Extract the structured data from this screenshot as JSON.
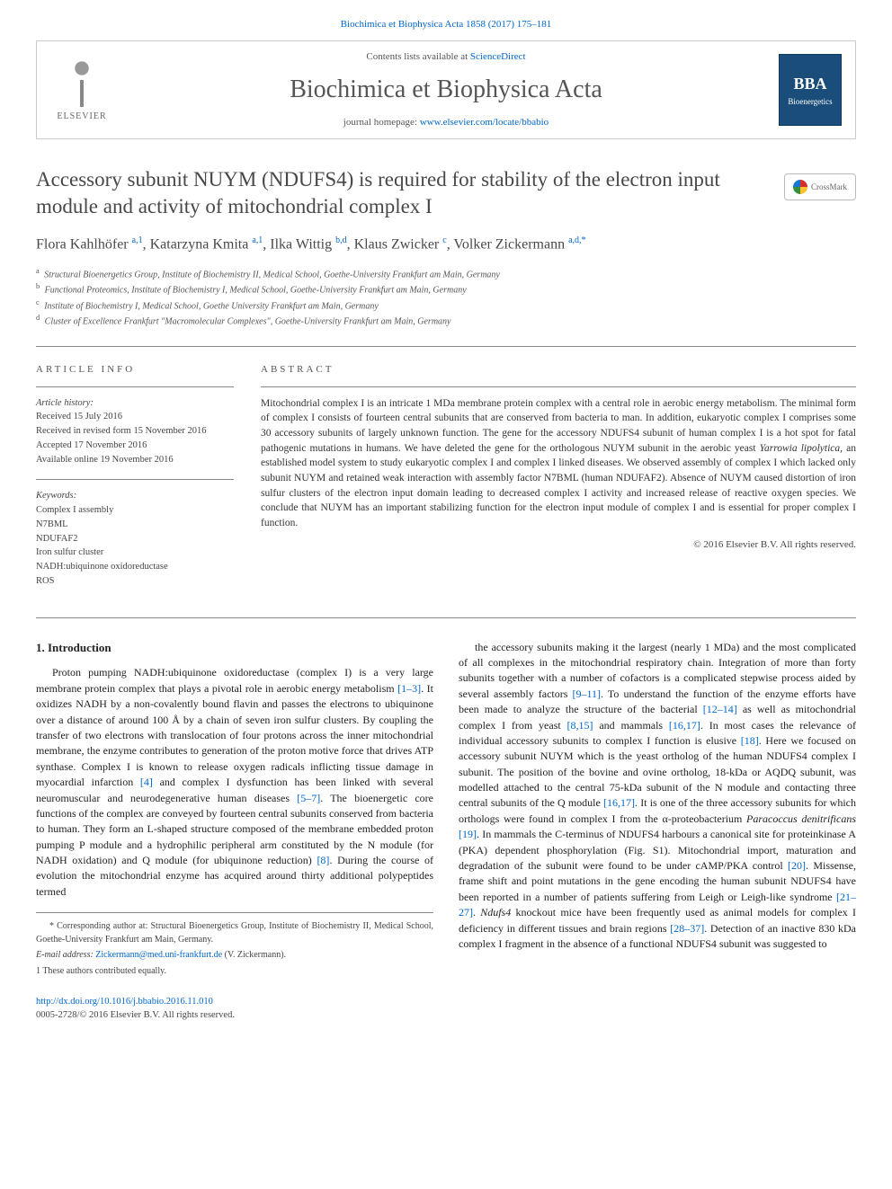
{
  "top_citation": "Biochimica et Biophysica Acta 1858 (2017) 175–181",
  "header": {
    "contents_prefix": "Contents lists available at ",
    "contents_link": "ScienceDirect",
    "journal": "Biochimica et Biophysica Acta",
    "homepage_prefix": "journal homepage: ",
    "homepage_link": "www.elsevier.com/locate/bbabio",
    "elsevier_label": "ELSEVIER",
    "bba_top": "BBA",
    "bba_bottom": "Bioenergetics"
  },
  "crossmark": "CrossMark",
  "title": "Accessory subunit NUYM (NDUFS4) is required for stability of the electron input module and activity of mitochondrial complex I",
  "authors_html": "Flora Kahlhöfer <sup>a,1</sup>, Katarzyna Kmita <sup>a,1</sup>, Ilka Wittig <sup>b,d</sup>, Klaus Zwicker <sup>c</sup>, Volker Zickermann <sup>a,d,*</sup>",
  "affiliations": [
    {
      "sup": "a",
      "text": "Structural Bioenergetics Group, Institute of Biochemistry II, Medical School, Goethe-University Frankfurt am Main, Germany"
    },
    {
      "sup": "b",
      "text": "Functional Proteomics, Institute of Biochemistry I, Medical School, Goethe-University Frankfurt am Main, Germany"
    },
    {
      "sup": "c",
      "text": "Institute of Biochemistry I, Medical School, Goethe University Frankfurt am Main, Germany"
    },
    {
      "sup": "d",
      "text": "Cluster of Excellence Frankfurt \"Macromolecular Complexes\", Goethe-University Frankfurt am Main, Germany"
    }
  ],
  "info": {
    "label": "ARTICLE INFO",
    "history_label": "Article history:",
    "history": [
      "Received 15 July 2016",
      "Received in revised form 15 November 2016",
      "Accepted 17 November 2016",
      "Available online 19 November 2016"
    ],
    "keywords_label": "Keywords:",
    "keywords": [
      "Complex I assembly",
      "N7BML",
      "NDUFAF2",
      "Iron sulfur cluster",
      "NADH:ubiquinone oxidoreductase",
      "ROS"
    ]
  },
  "abstract": {
    "label": "ABSTRACT",
    "text": "Mitochondrial complex I is an intricate 1 MDa membrane protein complex with a central role in aerobic energy metabolism. The minimal form of complex I consists of fourteen central subunits that are conserved from bacteria to man. In addition, eukaryotic complex I comprises some 30 accessory subunits of largely unknown function. The gene for the accessory NDUFS4 subunit of human complex I is a hot spot for fatal pathogenic mutations in humans. We have deleted the gene for the orthologous NUYM subunit in the aerobic yeast Yarrowia lipolytica, an established model system to study eukaryotic complex I and complex I linked diseases. We observed assembly of complex I which lacked only subunit NUYM and retained weak interaction with assembly factor N7BML (human NDUFAF2). Absence of NUYM caused distortion of iron sulfur clusters of the electron input domain leading to decreased complex I activity and increased release of reactive oxygen species. We conclude that NUYM has an important stabilizing function for the electron input module of complex I and is essential for proper complex I function.",
    "copyright": "© 2016 Elsevier B.V. All rights reserved."
  },
  "section_heading": "1. Introduction",
  "body_left": "Proton pumping NADH:ubiquinone oxidoreductase (complex I) is a very large membrane protein complex that plays a pivotal role in aerobic energy metabolism [1–3]. It oxidizes NADH by a non-covalently bound flavin and passes the electrons to ubiquinone over a distance of around 100 Å by a chain of seven iron sulfur clusters. By coupling the transfer of two electrons with translocation of four protons across the inner mitochondrial membrane, the enzyme contributes to generation of the proton motive force that drives ATP synthase. Complex I is known to release oxygen radicals inflicting tissue damage in myocardial infarction [4] and complex I dysfunction has been linked with several neuromuscular and neurodegenerative human diseases [5–7]. The bioenergetic core functions of the complex are conveyed by fourteen central subunits conserved from bacteria to human. They form an L-shaped structure composed of the membrane embedded proton pumping P module and a hydrophilic peripheral arm constituted by the N module (for NADH oxidation) and Q module (for ubiquinone reduction) [8]. During the course of evolution the mitochondrial enzyme has acquired around thirty additional polypeptides termed",
  "body_right": "the accessory subunits making it the largest (nearly 1 MDa) and the most complicated of all complexes in the mitochondrial respiratory chain. Integration of more than forty subunits together with a number of cofactors is a complicated stepwise process aided by several assembly factors [9–11]. To understand the function of the enzyme efforts have been made to analyze the structure of the bacterial [12–14] as well as mitochondrial complex I from yeast [8,15] and mammals [16,17]. In most cases the relevance of individual accessory subunits to complex I function is elusive [18]. Here we focused on accessory subunit NUYM which is the yeast ortholog of the human NDUFS4 complex I subunit. The position of the bovine and ovine ortholog, 18-kDa or AQDQ subunit, was modelled attached to the central 75-kDa subunit of the N module and contacting three central subunits of the Q module [16,17]. It is one of the three accessory subunits for which orthologs were found in complex I from the α-proteobacterium Paracoccus denitrificans [19]. In mammals the C-terminus of NDUFS4 harbours a canonical site for proteinkinase A (PKA) dependent phosphorylation (Fig. S1). Mitochondrial import, maturation and degradation of the subunit were found to be under cAMP/PKA control [20]. Missense, frame shift and point mutations in the gene encoding the human subunit NDUFS4 have been reported in a number of patients suffering from Leigh or Leigh-like syndrome [21–27]. Ndufs4 knockout mice have been frequently used as animal models for complex I deficiency in different tissues and brain regions [28–37]. Detection of an inactive 830 kDa complex I fragment in the absence of a functional NDUFS4 subunit was suggested to",
  "footnotes": {
    "corr": "* Corresponding author at: Structural Bioenergetics Group, Institute of Biochemistry II, Medical School, Goethe-University Frankfurt am Main, Germany.",
    "email_label": "E-mail address: ",
    "email": "Zickermann@med.uni-frankfurt.de",
    "email_name": " (V. Zickermann).",
    "contrib": "1 These authors contributed equally."
  },
  "footer": {
    "doi": "http://dx.doi.org/10.1016/j.bbabio.2016.11.010",
    "issn": "0005-2728/© 2016 Elsevier B.V. All rights reserved."
  },
  "colors": {
    "link": "#0066cc",
    "text": "#333333",
    "heading": "#484848",
    "rule": "#888888",
    "bba_bg": "#1a4d7a"
  },
  "typography": {
    "body_pt": 12,
    "title_pt": 23,
    "journal_pt": 28,
    "abstract_pt": 11.5,
    "footnote_pt": 10
  }
}
